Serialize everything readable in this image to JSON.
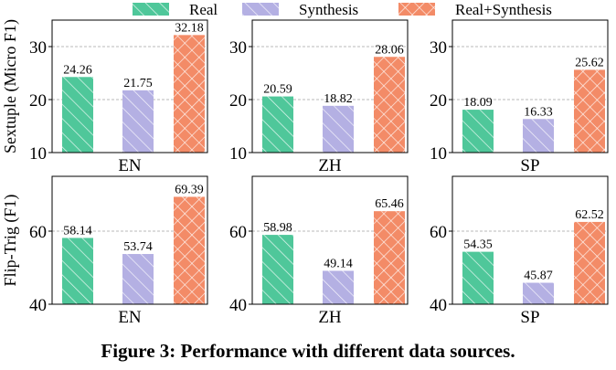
{
  "legend": [
    {
      "label": "Real",
      "color": "#4fc79a",
      "hatch": "diag"
    },
    {
      "label": "Synthesis",
      "color": "#b4b0e3",
      "hatch": "diag"
    },
    {
      "label": "Real+Synthesis",
      "color": "#f38b67",
      "hatch": "cross"
    }
  ],
  "caption": "Figure 3: Performance with different data sources.",
  "chart_data": [
    {
      "type": "bar",
      "row": "Sextuple (Micro F1)",
      "category": "EN",
      "ylim": [
        10,
        35
      ],
      "yticks": [
        "10",
        "20",
        "30"
      ],
      "grid": "y-dashed",
      "ylabel": "Sextuple (Micro F1)",
      "series": [
        {
          "name": "Real",
          "value": 24.26,
          "label": "24.26"
        },
        {
          "name": "Synthesis",
          "value": 21.75,
          "label": "21.75"
        },
        {
          "name": "Real+Synthesis",
          "value": 32.18,
          "label": "32.18"
        }
      ]
    },
    {
      "type": "bar",
      "category": "ZH",
      "ylim": [
        10,
        35
      ],
      "yticks": [
        "10",
        "20",
        "30"
      ],
      "grid": "y-dashed",
      "ylabel": "",
      "series": [
        {
          "name": "Real",
          "value": 20.59,
          "label": "20.59"
        },
        {
          "name": "Synthesis",
          "value": 18.82,
          "label": "18.82"
        },
        {
          "name": "Real+Synthesis",
          "value": 28.06,
          "label": "28.06"
        }
      ]
    },
    {
      "type": "bar",
      "category": "SP",
      "ylim": [
        10,
        35
      ],
      "yticks": [
        "10",
        "20",
        "30"
      ],
      "grid": "y-dashed",
      "ylabel": "",
      "series": [
        {
          "name": "Real",
          "value": 18.09,
          "label": "18.09"
        },
        {
          "name": "Synthesis",
          "value": 16.33,
          "label": "16.33"
        },
        {
          "name": "Real+Synthesis",
          "value": 25.62,
          "label": "25.62"
        }
      ]
    },
    {
      "type": "bar",
      "category": "EN",
      "ylim": [
        40,
        75
      ],
      "yticks": [
        "40",
        "60"
      ],
      "grid": "y-dashed",
      "ylabel": "Flip-Trig (F1)",
      "series": [
        {
          "name": "Real",
          "value": 58.14,
          "label": "58.14"
        },
        {
          "name": "Synthesis",
          "value": 53.74,
          "label": "53.74"
        },
        {
          "name": "Real+Synthesis",
          "value": 69.39,
          "label": "69.39"
        }
      ]
    },
    {
      "type": "bar",
      "category": "ZH",
      "ylim": [
        40,
        75
      ],
      "yticks": [
        "40",
        "60"
      ],
      "grid": "y-dashed",
      "ylabel": "",
      "series": [
        {
          "name": "Real",
          "value": 58.98,
          "label": "58.98"
        },
        {
          "name": "Synthesis",
          "value": 49.14,
          "label": "49.14"
        },
        {
          "name": "Real+Synthesis",
          "value": 65.46,
          "label": "65.46"
        }
      ]
    },
    {
      "type": "bar",
      "category": "SP",
      "ylim": [
        40,
        75
      ],
      "yticks": [
        "40",
        "60"
      ],
      "grid": "y-dashed",
      "ylabel": "",
      "series": [
        {
          "name": "Real",
          "value": 54.35,
          "label": "54.35"
        },
        {
          "name": "Synthesis",
          "value": 45.87,
          "label": "45.87"
        },
        {
          "name": "Real+Synthesis",
          "value": 62.52,
          "label": "62.52"
        }
      ]
    }
  ]
}
